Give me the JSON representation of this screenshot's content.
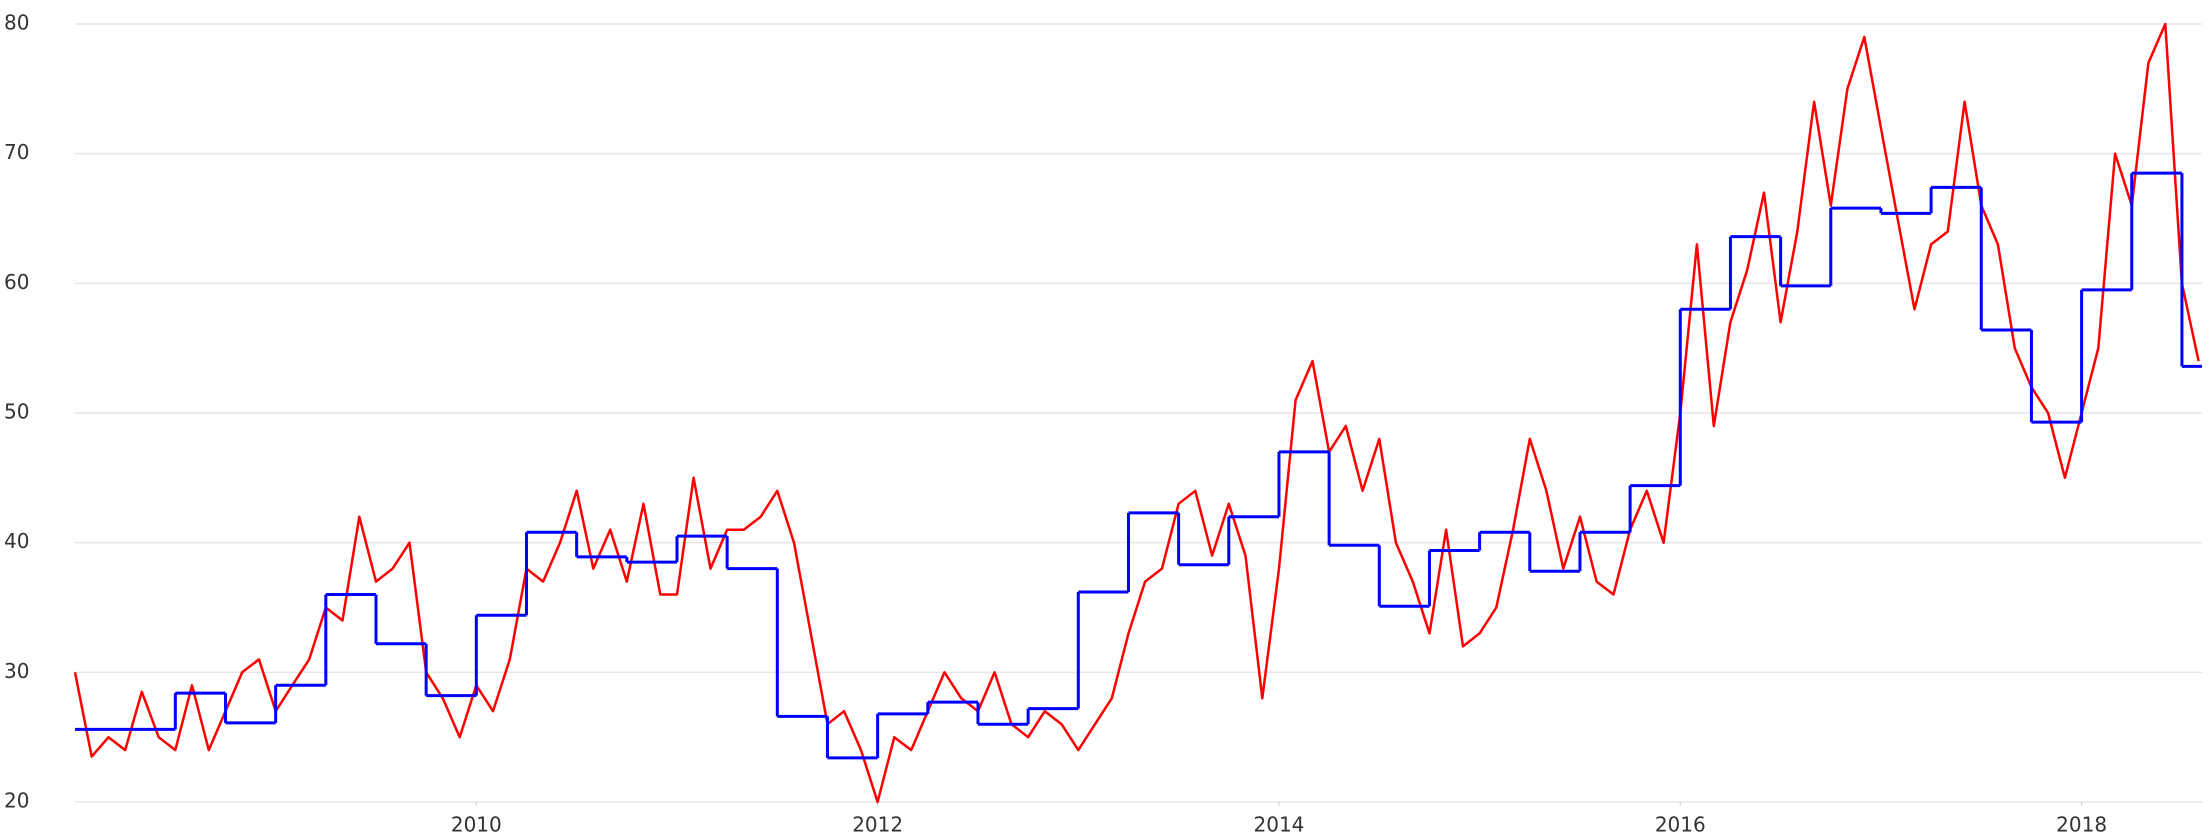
{
  "chart_data": {
    "type": "line",
    "xlim": [
      2008,
      2018.6
    ],
    "xticks": [
      2010,
      2012,
      2014,
      2016,
      2018
    ],
    "ylim": [
      20,
      80
    ],
    "yticks": [
      20,
      30,
      40,
      50,
      60,
      70,
      80
    ],
    "grid": true,
    "series": [
      {
        "color": "#ff0000",
        "x": [
          2008,
          2008.083,
          2008.167,
          2008.25,
          2008.333,
          2008.417,
          2008.5,
          2008.583,
          2008.667,
          2008.75,
          2008.833,
          2008.917,
          2009,
          2009.083,
          2009.167,
          2009.25,
          2009.333,
          2009.417,
          2009.5,
          2009.583,
          2009.667,
          2009.75,
          2009.833,
          2009.917,
          2010,
          2010.083,
          2010.167,
          2010.25,
          2010.333,
          2010.417,
          2010.5,
          2010.583,
          2010.667,
          2010.75,
          2010.833,
          2010.917,
          2011,
          2011.083,
          2011.167,
          2011.25,
          2011.333,
          2011.417,
          2011.5,
          2011.583,
          2011.667,
          2011.75,
          2011.833,
          2011.917,
          2012,
          2012.083,
          2012.167,
          2012.25,
          2012.333,
          2012.417,
          2012.5,
          2012.583,
          2012.667,
          2012.75,
          2012.833,
          2012.917,
          2013,
          2013.083,
          2013.167,
          2013.25,
          2013.333,
          2013.417,
          2013.5,
          2013.583,
          2013.667,
          2013.75,
          2013.833,
          2013.917,
          2014,
          2014.083,
          2014.167,
          2014.25,
          2014.333,
          2014.417,
          2014.5,
          2014.583,
          2014.667,
          2014.75,
          2014.833,
          2014.917,
          2015,
          2015.083,
          2015.167,
          2015.25,
          2015.333,
          2015.417,
          2015.5,
          2015.583,
          2015.667,
          2015.75,
          2015.833,
          2015.917,
          2016,
          2016.083,
          2016.167,
          2016.25,
          2016.333,
          2016.417,
          2016.5,
          2016.583,
          2016.667,
          2016.75,
          2016.833,
          2016.917,
          2017,
          2017.083,
          2017.167,
          2017.25,
          2017.333,
          2017.417,
          2017.5,
          2017.583,
          2017.667,
          2017.75,
          2017.833,
          2017.917,
          2018,
          2018.083,
          2018.167,
          2018.25,
          2018.333,
          2018.417,
          2018.5,
          2018.583
        ],
        "values": [
          30,
          23.5,
          25,
          24,
          28.5,
          25,
          24,
          29,
          24,
          27,
          30,
          31,
          27,
          29,
          31,
          35,
          34,
          42,
          37,
          38,
          40,
          30,
          28,
          25,
          29,
          27,
          31,
          38,
          37,
          40,
          44,
          38,
          41,
          37,
          43,
          36,
          36,
          45,
          38,
          41,
          41,
          42,
          44,
          40,
          33,
          26,
          27,
          24,
          20,
          25,
          24,
          27,
          30,
          28,
          27,
          30,
          26,
          25,
          27,
          26,
          24,
          26,
          28,
          33,
          37,
          38,
          43,
          44,
          39,
          43,
          39,
          28,
          38,
          51,
          54,
          47,
          49,
          44,
          48,
          40,
          37,
          33,
          41,
          32,
          33,
          35,
          41,
          48,
          44,
          38,
          42,
          37,
          36,
          41,
          44,
          40,
          50,
          63,
          49,
          57,
          61,
          67,
          57,
          64,
          74,
          66,
          75,
          79,
          72,
          65,
          58,
          63,
          64,
          74,
          66,
          63,
          55,
          52,
          50,
          45,
          50,
          55,
          70,
          66,
          77,
          80,
          60,
          54
        ]
      },
      {
        "color": "#0000ff",
        "step": "post",
        "x": [
          2008,
          2008.5,
          2008.75,
          2009,
          2009.25,
          2009.5,
          2009.75,
          2010,
          2010.25,
          2010.5,
          2010.75,
          2011,
          2011.25,
          2011.5,
          2011.75,
          2012,
          2012.25,
          2012.5,
          2012.75,
          2013,
          2013.25,
          2013.5,
          2013.75,
          2014,
          2014.25,
          2014.5,
          2014.75,
          2015,
          2015.25,
          2015.5,
          2015.75,
          2016,
          2016.25,
          2016.5,
          2016.75,
          2017,
          2017.25,
          2017.5,
          2017.75,
          2018,
          2018.25,
          2018.5
        ],
        "values": [
          25.6,
          28.4,
          26.1,
          29,
          36,
          32.2,
          28.2,
          34.4,
          40.8,
          38.9,
          38.5,
          40.5,
          38,
          26.6,
          23.4,
          26.8,
          27.7,
          26,
          27.2,
          36.2,
          42.3,
          38.3,
          42,
          47,
          39.8,
          35.1,
          39.4,
          40.8,
          37.8,
          40.8,
          44.4,
          58,
          63.6,
          59.8,
          65.8,
          65.4,
          67.4,
          56.4,
          49.3,
          59.5,
          68.5,
          53.6
        ]
      }
    ]
  }
}
